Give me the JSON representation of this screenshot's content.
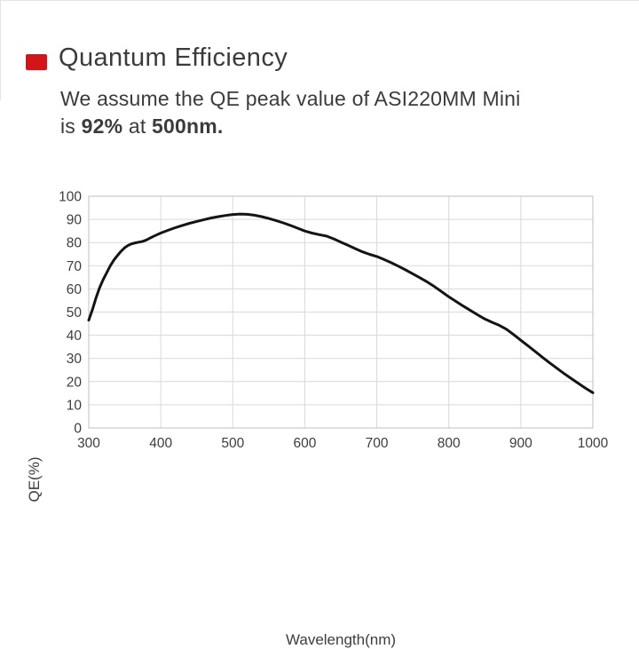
{
  "page": {
    "accent_red": "#d2141b",
    "background": "#ffffff"
  },
  "header": {
    "title": "Quantum Efficiency",
    "subtitle_line1": "We assume the QE peak value of ASI220MM Mini",
    "subtitle_line2": {
      "p1": "is ",
      "b1": "92%",
      "p2": " at ",
      "b2": "500nm."
    }
  },
  "chart_data": {
    "type": "line",
    "title": "",
    "xlabel": "Wavelength(nm)",
    "ylabel": "QE(%)",
    "xlim": [
      300,
      1000
    ],
    "ylim": [
      0,
      100
    ],
    "x_ticks": [
      300,
      400,
      500,
      600,
      700,
      800,
      900,
      1000
    ],
    "y_ticks": [
      0,
      10,
      20,
      30,
      40,
      50,
      60,
      70,
      80,
      90,
      100
    ],
    "grid": true,
    "legend": "none",
    "grid_color": "#d9d9d9",
    "axis_color": "#bfbfbf",
    "line_color": "#141414",
    "peak": {
      "qe_percent": 92,
      "wavelength_nm": 500
    },
    "series": [
      {
        "name": "QE",
        "points": [
          [
            300,
            46.5
          ],
          [
            305,
            51
          ],
          [
            310,
            56
          ],
          [
            315,
            60.5
          ],
          [
            320,
            64
          ],
          [
            325,
            67
          ],
          [
            330,
            70
          ],
          [
            335,
            72.5
          ],
          [
            340,
            74.5
          ],
          [
            345,
            76.3
          ],
          [
            350,
            77.8
          ],
          [
            355,
            78.8
          ],
          [
            360,
            79.5
          ],
          [
            365,
            79.9
          ],
          [
            370,
            80.2
          ],
          [
            375,
            80.5
          ],
          [
            380,
            81.1
          ],
          [
            385,
            81.9
          ],
          [
            390,
            82.7
          ],
          [
            395,
            83.4
          ],
          [
            400,
            84.1
          ],
          [
            410,
            85.3
          ],
          [
            420,
            86.4
          ],
          [
            430,
            87.4
          ],
          [
            440,
            88.3
          ],
          [
            450,
            89.1
          ],
          [
            460,
            89.9
          ],
          [
            470,
            90.6
          ],
          [
            480,
            91.2
          ],
          [
            490,
            91.7
          ],
          [
            500,
            92.1
          ],
          [
            510,
            92.3
          ],
          [
            520,
            92.2
          ],
          [
            530,
            91.8
          ],
          [
            540,
            91.2
          ],
          [
            550,
            90.4
          ],
          [
            560,
            89.5
          ],
          [
            570,
            88.5
          ],
          [
            580,
            87.4
          ],
          [
            590,
            86.2
          ],
          [
            600,
            85
          ],
          [
            610,
            84.1
          ],
          [
            620,
            83.4
          ],
          [
            630,
            82.8
          ],
          [
            640,
            81.6
          ],
          [
            650,
            80.2
          ],
          [
            660,
            78.8
          ],
          [
            670,
            77.4
          ],
          [
            680,
            76
          ],
          [
            690,
            74.9
          ],
          [
            700,
            74
          ],
          [
            710,
            72.7
          ],
          [
            720,
            71.3
          ],
          [
            730,
            69.8
          ],
          [
            740,
            68.2
          ],
          [
            750,
            66.5
          ],
          [
            760,
            64.8
          ],
          [
            770,
            63
          ],
          [
            780,
            61
          ],
          [
            790,
            58.8
          ],
          [
            800,
            56.6
          ],
          [
            810,
            54.6
          ],
          [
            820,
            52.6
          ],
          [
            830,
            50.7
          ],
          [
            840,
            48.8
          ],
          [
            850,
            47
          ],
          [
            860,
            45.6
          ],
          [
            870,
            44.3
          ],
          [
            880,
            42.6
          ],
          [
            890,
            40.3
          ],
          [
            900,
            37.8
          ],
          [
            910,
            35.4
          ],
          [
            920,
            33
          ],
          [
            930,
            30.5
          ],
          [
            940,
            28.1
          ],
          [
            950,
            25.8
          ],
          [
            960,
            23.5
          ],
          [
            970,
            21.3
          ],
          [
            980,
            19.2
          ],
          [
            990,
            17.1
          ],
          [
            1000,
            15.2
          ]
        ]
      }
    ]
  }
}
